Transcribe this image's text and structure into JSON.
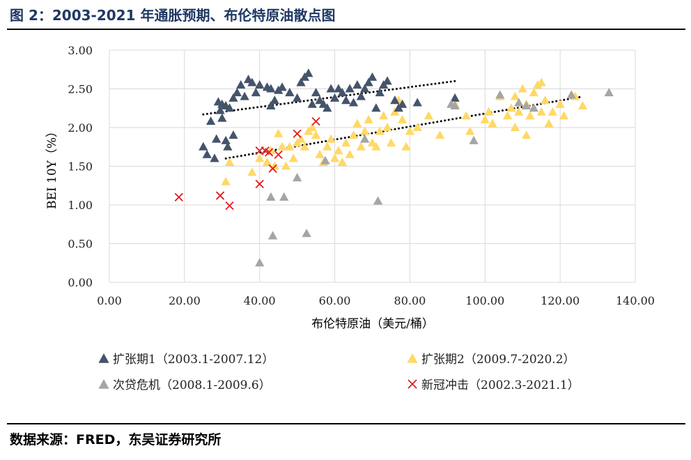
{
  "header": {
    "title": "图 2：2003-2021 年通胀预期、布伦特原油散点图"
  },
  "footer": {
    "source": "数据来源：FRED，东吴证券研究所"
  },
  "colors": {
    "navy": "#44546a",
    "yellow": "#ffd966",
    "gray": "#a5a5a5",
    "red": "#e41a1c",
    "grid": "#d9d9d9",
    "trend": "#000000"
  },
  "chart_data": {
    "type": "scatter",
    "title": "",
    "xlabel": "布伦特原油（美元/桶）",
    "ylabel": "BEI 10Y（%）",
    "xlim": [
      0,
      140
    ],
    "ylim": [
      0,
      3
    ],
    "x_ticks": [
      "0.00",
      "20.00",
      "40.00",
      "60.00",
      "80.00",
      "100.00",
      "120.00",
      "140.00"
    ],
    "y_ticks": [
      "0.00",
      "0.50",
      "1.00",
      "1.50",
      "2.00",
      "2.50",
      "3.00"
    ],
    "grid": true,
    "legend_position": "bottom",
    "series": [
      {
        "name": "扩张期1（2003.1-2007.12）",
        "marker": "triangle",
        "color": "#44546a",
        "points": [
          [
            25,
            1.75
          ],
          [
            26,
            1.65
          ],
          [
            27,
            2.08
          ],
          [
            28,
            1.6
          ],
          [
            28.5,
            1.85
          ],
          [
            29,
            2.33
          ],
          [
            29.5,
            2.22
          ],
          [
            30,
            2.12
          ],
          [
            30,
            2.3
          ],
          [
            31,
            1.83
          ],
          [
            31,
            2.28
          ],
          [
            31.5,
            1.75
          ],
          [
            32,
            2.25
          ],
          [
            33,
            1.9
          ],
          [
            33,
            2.38
          ],
          [
            34,
            2.45
          ],
          [
            35,
            2.55
          ],
          [
            36,
            2.4
          ],
          [
            37,
            2.62
          ],
          [
            38,
            2.58
          ],
          [
            39,
            2.45
          ],
          [
            40,
            2.55
          ],
          [
            42,
            2.52
          ],
          [
            43,
            2.28
          ],
          [
            43,
            2.5
          ],
          [
            44,
            2.35
          ],
          [
            45,
            2.48
          ],
          [
            46,
            2.52
          ],
          [
            48,
            2.45
          ],
          [
            50,
            2.38
          ],
          [
            51,
            2.58
          ],
          [
            52,
            2.65
          ],
          [
            53,
            2.7
          ],
          [
            54,
            2.3
          ],
          [
            55,
            2.45
          ],
          [
            56,
            2.35
          ],
          [
            57,
            2.3
          ],
          [
            58,
            2.25
          ],
          [
            59,
            2.5
          ],
          [
            60,
            2.38
          ],
          [
            61,
            2.5
          ],
          [
            62,
            2.45
          ],
          [
            63,
            2.35
          ],
          [
            64,
            2.5
          ],
          [
            65,
            2.32
          ],
          [
            66,
            2.55
          ],
          [
            67,
            2.4
          ],
          [
            68,
            2.5
          ],
          [
            69,
            2.58
          ],
          [
            70,
            2.65
          ],
          [
            71,
            2.25
          ],
          [
            72,
            2.45
          ],
          [
            73,
            2.55
          ],
          [
            74,
            2.6
          ],
          [
            76,
            2.35
          ],
          [
            77,
            2.25
          ],
          [
            78,
            2.3
          ],
          [
            82,
            2.32
          ],
          [
            92,
            2.38
          ]
        ]
      },
      {
        "name": "扩张期2（2009.7-2020.2）",
        "marker": "triangle",
        "color": "#ffd966",
        "points": [
          [
            31,
            1.3
          ],
          [
            32,
            1.55
          ],
          [
            38,
            1.42
          ],
          [
            40,
            1.6
          ],
          [
            42,
            1.55
          ],
          [
            43,
            1.7
          ],
          [
            44,
            1.5
          ],
          [
            45,
            1.92
          ],
          [
            46,
            1.75
          ],
          [
            47,
            1.5
          ],
          [
            48,
            1.75
          ],
          [
            49,
            1.6
          ],
          [
            50,
            1.8
          ],
          [
            51,
            1.85
          ],
          [
            52,
            1.75
          ],
          [
            53,
            1.95
          ],
          [
            54,
            2.0
          ],
          [
            55,
            1.9
          ],
          [
            56,
            1.65
          ],
          [
            57,
            1.55
          ],
          [
            58,
            1.75
          ],
          [
            59,
            1.85
          ],
          [
            60,
            1.6
          ],
          [
            61,
            1.7
          ],
          [
            62,
            1.55
          ],
          [
            63,
            1.8
          ],
          [
            64,
            1.65
          ],
          [
            65,
            1.9
          ],
          [
            66,
            2.05
          ],
          [
            67,
            1.75
          ],
          [
            68,
            1.95
          ],
          [
            69,
            2.1
          ],
          [
            70,
            1.8
          ],
          [
            71,
            1.75
          ],
          [
            72,
            1.95
          ],
          [
            73,
            2.15
          ],
          [
            74,
            2.0
          ],
          [
            75,
            1.8
          ],
          [
            76,
            2.2
          ],
          [
            77,
            2.35
          ],
          [
            78,
            2.1
          ],
          [
            79,
            1.75
          ],
          [
            80,
            1.95
          ],
          [
            82,
            2.0
          ],
          [
            85,
            2.15
          ],
          [
            88,
            1.9
          ],
          [
            92,
            2.3
          ],
          [
            95,
            2.15
          ],
          [
            96,
            1.95
          ],
          [
            100,
            2.1
          ],
          [
            101,
            2.2
          ],
          [
            102,
            2.05
          ],
          [
            104,
            2.4
          ],
          [
            106,
            2.15
          ],
          [
            107,
            2.25
          ],
          [
            108,
            2.0
          ],
          [
            108,
            2.4
          ],
          [
            109,
            2.2
          ],
          [
            110,
            2.5
          ],
          [
            111,
            1.9
          ],
          [
            111,
            2.3
          ],
          [
            112,
            2.15
          ],
          [
            113,
            2.45
          ],
          [
            114,
            2.55
          ],
          [
            115,
            2.2
          ],
          [
            115,
            2.58
          ],
          [
            116,
            2.35
          ],
          [
            117,
            2.05
          ],
          [
            118,
            2.2
          ],
          [
            120,
            2.3
          ],
          [
            121,
            2.15
          ],
          [
            124,
            2.4
          ],
          [
            126,
            2.28
          ]
        ]
      },
      {
        "name": "次贷危机（2008.1-2009.6）",
        "marker": "triangle",
        "color": "#a5a5a5",
        "points": [
          [
            40,
            0.25
          ],
          [
            43,
            1.1
          ],
          [
            43.5,
            0.6
          ],
          [
            46.5,
            1.1
          ],
          [
            50,
            1.35
          ],
          [
            52.5,
            0.63
          ],
          [
            57.5,
            1.57
          ],
          [
            68,
            1.85
          ],
          [
            71.5,
            1.05
          ],
          [
            91,
            2.3
          ],
          [
            92,
            2.28
          ],
          [
            97,
            1.83
          ],
          [
            104,
            2.42
          ],
          [
            109,
            2.32
          ],
          [
            111,
            2.28
          ],
          [
            113,
            2.25
          ],
          [
            123,
            2.42
          ],
          [
            133,
            2.45
          ]
        ]
      },
      {
        "name": "新冠冲击（2002.3-2021.1）",
        "marker": "x",
        "color": "#e41a1c",
        "points": [
          [
            18.5,
            1.1
          ],
          [
            29.5,
            1.12
          ],
          [
            32,
            0.99
          ],
          [
            40,
            1.27
          ],
          [
            40,
            1.7
          ],
          [
            41.5,
            1.7
          ],
          [
            42.5,
            1.68
          ],
          [
            43.5,
            1.47
          ],
          [
            45,
            1.65
          ],
          [
            50,
            1.92
          ],
          [
            55,
            2.08
          ]
        ]
      }
    ],
    "trendlines": [
      {
        "x": [
          25,
          92
        ],
        "y": [
          2.17,
          2.6
        ]
      },
      {
        "x": [
          31,
          126
        ],
        "y": [
          1.6,
          2.4
        ]
      }
    ]
  }
}
